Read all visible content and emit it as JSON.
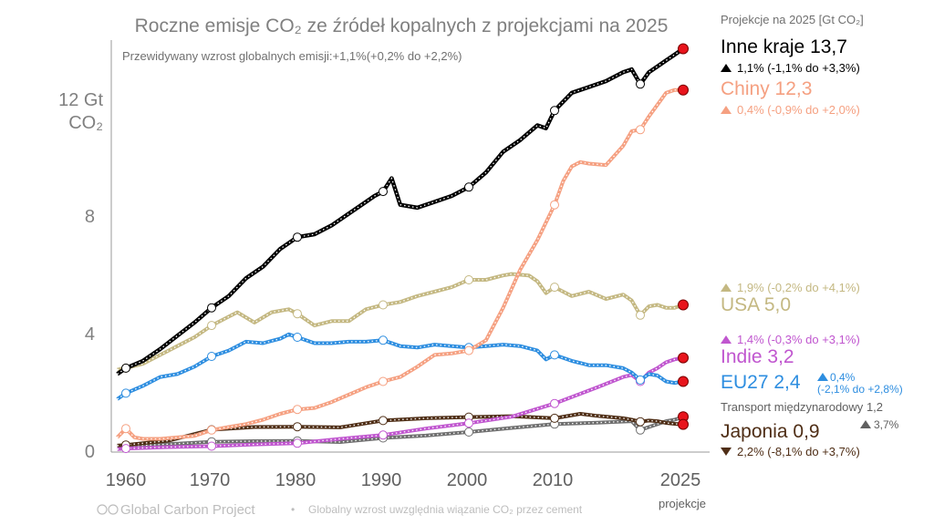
{
  "chart_data": {
    "type": "line",
    "title": "Roczne emisje CO₂ ze źródeł kopalnych z projekcjami na 2025",
    "subtitle": "Przewidywany wzrost globalnych emisji:+1,1%(+0,2% do +2,2%)",
    "ylabel_top": "12 Gt",
    "ylabel_bottom": "CO₂",
    "ylim": [
      0,
      14
    ],
    "yticks": [
      "0",
      "4",
      "8"
    ],
    "xlim": [
      1960,
      2025
    ],
    "xticks": [
      "1960",
      "1970",
      "1980",
      "1990",
      "2000",
      "2010",
      "2025"
    ],
    "x_note": "projekcje",
    "legend_header": "Projekcje na 2025 [Gt CO₂]",
    "grid": false,
    "series": [
      {
        "name": "Inne kraje",
        "color": "#000000",
        "value_label": "13,7",
        "change_label": "1,1% (-1,1% do +3,3%)",
        "direction": "up",
        "x": [
          1959,
          1960,
          1962,
          1964,
          1966,
          1968,
          1970,
          1972,
          1974,
          1976,
          1978,
          1980,
          1982,
          1984,
          1986,
          1988,
          1989,
          1990,
          1991,
          1992,
          1994,
          1996,
          1998,
          2000,
          2002,
          2004,
          2006,
          2008,
          2009,
          2010,
          2012,
          2014,
          2016,
          2018,
          2019,
          2020,
          2021,
          2022,
          2023,
          2024,
          2025
        ],
        "values": [
          2.65,
          2.85,
          3.1,
          3.5,
          3.95,
          4.4,
          4.9,
          5.3,
          5.9,
          6.3,
          6.9,
          7.3,
          7.4,
          7.7,
          8.1,
          8.5,
          8.7,
          8.85,
          9.3,
          8.4,
          8.3,
          8.5,
          8.7,
          9.0,
          9.5,
          10.2,
          10.6,
          11.1,
          11.0,
          11.6,
          12.2,
          12.4,
          12.6,
          12.9,
          13.0,
          12.5,
          12.9,
          13.1,
          13.3,
          13.5,
          13.7
        ]
      },
      {
        "name": "Chiny",
        "color": "#f5a081",
        "value_label": "12,3",
        "change_label": "0,4% (-0,9% do +2,0%)",
        "direction": "up",
        "x": [
          1959,
          1960,
          1961,
          1962,
          1964,
          1966,
          1968,
          1970,
          1972,
          1974,
          1976,
          1978,
          1980,
          1982,
          1984,
          1986,
          1988,
          1990,
          1992,
          1994,
          1996,
          1998,
          2000,
          2002,
          2004,
          2006,
          2008,
          2010,
          2011,
          2012,
          2013,
          2014,
          2016,
          2018,
          2019,
          2020,
          2021,
          2022,
          2023,
          2024,
          2025
        ],
        "values": [
          0.5,
          0.8,
          0.5,
          0.45,
          0.45,
          0.5,
          0.55,
          0.75,
          0.85,
          0.95,
          1.1,
          1.3,
          1.45,
          1.5,
          1.7,
          1.95,
          2.2,
          2.4,
          2.55,
          2.9,
          3.3,
          3.35,
          3.45,
          3.8,
          4.9,
          6.2,
          7.2,
          8.4,
          9.2,
          9.7,
          9.85,
          9.8,
          9.75,
          10.4,
          10.9,
          10.95,
          11.4,
          11.8,
          12.2,
          12.3,
          12.3
        ]
      },
      {
        "name": "USA",
        "color": "#c4b882",
        "value_label": "5,0",
        "change_label": "1,9% (-0,2% do +4,1%)",
        "direction": "up",
        "x": [
          1959,
          1960,
          1962,
          1964,
          1966,
          1968,
          1970,
          1972,
          1973,
          1975,
          1977,
          1979,
          1980,
          1982,
          1984,
          1986,
          1988,
          1990,
          1992,
          1994,
          1996,
          1998,
          2000,
          2002,
          2004,
          2005,
          2007,
          2008,
          2009,
          2010,
          2012,
          2014,
          2016,
          2018,
          2019,
          2020,
          2021,
          2022,
          2023,
          2024,
          2025
        ],
        "values": [
          2.8,
          2.85,
          3.0,
          3.3,
          3.6,
          3.9,
          4.3,
          4.6,
          4.75,
          4.4,
          4.75,
          4.85,
          4.7,
          4.3,
          4.45,
          4.45,
          4.85,
          5.0,
          5.1,
          5.3,
          5.45,
          5.6,
          5.85,
          5.85,
          6.0,
          6.05,
          6.0,
          5.8,
          5.4,
          5.6,
          5.3,
          5.45,
          5.2,
          5.35,
          5.15,
          4.65,
          4.95,
          5.0,
          4.9,
          4.9,
          5.0
        ]
      },
      {
        "name": "Indie",
        "color": "#c056cf",
        "value_label": "3,2",
        "change_label": "1,4% (-0,3% do +3,1%)",
        "direction": "up",
        "x": [
          1959,
          1960,
          1965,
          1970,
          1975,
          1980,
          1985,
          1990,
          1995,
          2000,
          2005,
          2010,
          2015,
          2018,
          2019,
          2020,
          2021,
          2022,
          2023,
          2024,
          2025
        ],
        "values": [
          0.1,
          0.12,
          0.17,
          0.2,
          0.26,
          0.3,
          0.45,
          0.58,
          0.8,
          0.98,
          1.2,
          1.65,
          2.2,
          2.55,
          2.62,
          2.4,
          2.7,
          2.85,
          3.05,
          3.15,
          3.2
        ]
      },
      {
        "name": "EU27",
        "color": "#2e8ee0",
        "value_label": "2,4",
        "change_label_1": "0,4%",
        "change_label_2": "(-2,1% do +2,8%)",
        "direction": "up",
        "x": [
          1959,
          1960,
          1962,
          1964,
          1966,
          1968,
          1970,
          1972,
          1974,
          1976,
          1978,
          1979,
          1980,
          1982,
          1984,
          1986,
          1988,
          1990,
          1992,
          1994,
          1996,
          1998,
          2000,
          2002,
          2004,
          2006,
          2008,
          2009,
          2010,
          2012,
          2014,
          2016,
          2018,
          2019,
          2020,
          2021,
          2022,
          2023,
          2024,
          2025
        ],
        "values": [
          1.8,
          2.0,
          2.25,
          2.55,
          2.65,
          2.9,
          3.25,
          3.45,
          3.75,
          3.7,
          3.85,
          4.0,
          3.9,
          3.7,
          3.7,
          3.75,
          3.75,
          3.8,
          3.6,
          3.55,
          3.65,
          3.6,
          3.55,
          3.6,
          3.65,
          3.6,
          3.45,
          3.15,
          3.3,
          3.1,
          2.95,
          2.95,
          2.85,
          2.7,
          2.45,
          2.65,
          2.6,
          2.4,
          2.35,
          2.4
        ]
      },
      {
        "name": "Transport międzynarodowy",
        "color": "#6f6f6f",
        "value_label": "1,2",
        "change_label": "3,7%",
        "direction": "up",
        "x": [
          1959,
          1960,
          1965,
          1970,
          1975,
          1980,
          1985,
          1990,
          1995,
          2000,
          2005,
          2010,
          2015,
          2019,
          2020,
          2021,
          2022,
          2023,
          2024,
          2025
        ],
        "values": [
          0.17,
          0.2,
          0.27,
          0.35,
          0.37,
          0.38,
          0.34,
          0.48,
          0.56,
          0.68,
          0.82,
          0.95,
          1.0,
          1.05,
          0.75,
          0.85,
          0.95,
          1.05,
          1.1,
          1.2
        ]
      },
      {
        "name": "Japonia",
        "color": "#4f2e16",
        "value_label": "0,9",
        "change_label": "2,2% (-8,1% do +3,7%)",
        "direction": "down",
        "x": [
          1959,
          1960,
          1965,
          1970,
          1975,
          1980,
          1985,
          1990,
          1995,
          2000,
          2005,
          2010,
          2013,
          2015,
          2018,
          2019,
          2020,
          2021,
          2022,
          2023,
          2024,
          2025
        ],
        "values": [
          0.22,
          0.24,
          0.39,
          0.76,
          0.85,
          0.86,
          0.84,
          1.07,
          1.15,
          1.19,
          1.22,
          1.15,
          1.3,
          1.23,
          1.15,
          1.1,
          1.03,
          1.07,
          1.05,
          0.99,
          0.96,
          0.94
        ]
      }
    ]
  },
  "footer": {
    "logo": "Global Carbon Project",
    "note": "Globalny wzrost uwzględnia wiązanie CO₂ przez cement",
    "bullet": "•"
  }
}
